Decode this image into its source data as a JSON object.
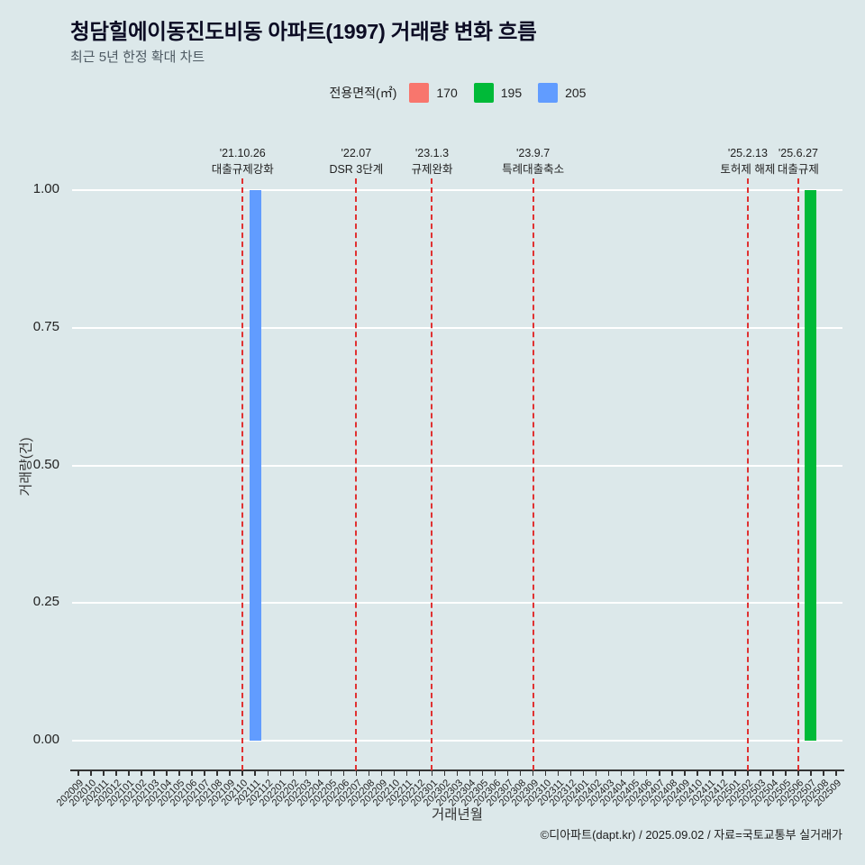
{
  "footer": {
    "credit": "©디아파트(dapt.kr) / 2025.09.02 / 자료=국토교통부 실거래가"
  },
  "chart_data": {
    "type": "bar",
    "title": "청담힐에이동진도비동 아파트(1997) 거래량 변화 흐름",
    "subtitle": "최근 5년 한정 확대 차트",
    "legend_title": "전용면적(㎡)",
    "xlabel": "거래년월",
    "ylabel": "거래량(건)",
    "ylim": [
      0,
      1
    ],
    "yticks": [
      "0.00",
      "0.25",
      "0.50",
      "0.75",
      "1.00"
    ],
    "grid": "horizontal white lines",
    "legend_position": "top-center",
    "categories": [
      "202009",
      "202010",
      "202011",
      "202012",
      "202101",
      "202102",
      "202103",
      "202104",
      "202105",
      "202106",
      "202107",
      "202108",
      "202109",
      "202110",
      "202111",
      "202112",
      "202201",
      "202202",
      "202203",
      "202204",
      "202205",
      "202206",
      "202207",
      "202208",
      "202209",
      "202210",
      "202211",
      "202212",
      "202301",
      "202302",
      "202303",
      "202304",
      "202305",
      "202306",
      "202307",
      "202308",
      "202309",
      "202310",
      "202311",
      "202312",
      "202401",
      "202402",
      "202403",
      "202404",
      "202405",
      "202406",
      "202407",
      "202408",
      "202409",
      "202410",
      "202411",
      "202412",
      "202501",
      "202502",
      "202503",
      "202504",
      "202505",
      "202506",
      "202507",
      "202508",
      "202509"
    ],
    "series": [
      {
        "name": "170",
        "color": "#F8766D",
        "bars": []
      },
      {
        "name": "195",
        "color": "#00BA38",
        "bars": [
          {
            "month": "202507",
            "value": 1
          }
        ]
      },
      {
        "name": "205",
        "color": "#619CFF",
        "bars": [
          {
            "month": "202111",
            "value": 1
          }
        ]
      }
    ],
    "vlines": [
      {
        "date": "'21.10.26",
        "label": "대출규제강화",
        "month": "202110"
      },
      {
        "date": "'22.07",
        "label": "DSR 3단계",
        "month": "202207"
      },
      {
        "date": "'23.1.3",
        "label": "규제완화",
        "month": "202301"
      },
      {
        "date": "'23.9.7",
        "label": "특례대출축소",
        "month": "202309"
      },
      {
        "date": "'25.2.13",
        "label": "토허제 해제",
        "month": "202502"
      },
      {
        "date": "'25.6.27",
        "label": "대출규제",
        "month": "202506"
      }
    ],
    "colors": {
      "background": "#dce8ea",
      "grid": "#ffffff",
      "event_line": "#e03131",
      "axis": "#333333"
    }
  }
}
